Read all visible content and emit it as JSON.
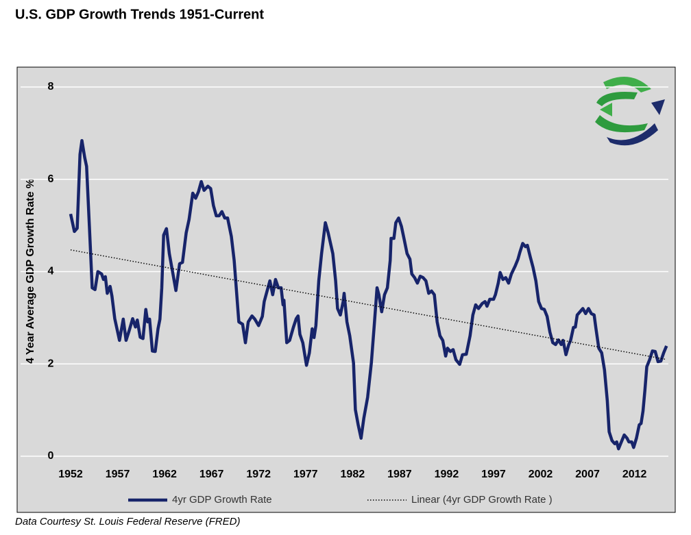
{
  "chart_data": {
    "type": "line",
    "title": "U.S. GDP Growth Trends 1951-Current",
    "ylabel": "4 Year Average GDP Growth Rate %",
    "source": "Data Courtesy St. Louis Federal Reserve (FRED)",
    "xlim": [
      1952,
      2015.6
    ],
    "xticks": [
      1952,
      1957,
      1962,
      1967,
      1972,
      1977,
      1982,
      1987,
      1992,
      1997,
      2002,
      2007,
      2012
    ],
    "ylim": [
      0,
      8
    ],
    "yticks": [
      0,
      2,
      4,
      6,
      8
    ],
    "grid": true,
    "legend": "bottom",
    "series": [
      {
        "name": "4yr GDP Growth Rate",
        "color": "#17246a",
        "style": "solid",
        "x": [
          1952,
          1952.4,
          1952.7,
          1953.0,
          1953.2,
          1953.5,
          1953.7,
          1954.0,
          1954.3,
          1954.6,
          1954.9,
          1955.3,
          1955.5,
          1955.7,
          1955.9,
          1956.2,
          1956.4,
          1956.7,
          1957.2,
          1957.6,
          1957.9,
          1958.2,
          1958.6,
          1958.9,
          1959.1,
          1959.4,
          1959.7,
          1960.0,
          1960.2,
          1960.4,
          1960.7,
          1961.0,
          1961.3,
          1961.5,
          1961.7,
          1961.9,
          1962.2,
          1962.5,
          1962.8,
          1963.2,
          1963.6,
          1963.9,
          1964.3,
          1964.6,
          1965.0,
          1965.3,
          1965.6,
          1965.9,
          1966.2,
          1966.6,
          1966.9,
          1967.2,
          1967.5,
          1967.8,
          1968.1,
          1968.4,
          1968.7,
          1969.1,
          1969.4,
          1969.9,
          1970.3,
          1970.6,
          1970.9,
          1971.3,
          1971.6,
          1972.0,
          1972.4,
          1972.6,
          1972.9,
          1973.2,
          1973.5,
          1973.8,
          1974.1,
          1974.4,
          1974.6,
          1974.7,
          1975.0,
          1975.3,
          1975.7,
          1976.0,
          1976.2,
          1976.4,
          1976.7,
          1977.1,
          1977.4,
          1977.7,
          1977.9,
          1978.1,
          1978.4,
          1978.7,
          1979.1,
          1979.4,
          1979.9,
          1980.2,
          1980.4,
          1980.7,
          1981.0,
          1981.1,
          1981.4,
          1981.7,
          1982.1,
          1982.3,
          1982.6,
          1982.9,
          1983.2,
          1983.6,
          1984.0,
          1984.3,
          1984.6,
          1984.8,
          1985.1,
          1985.4,
          1985.7,
          1986.0,
          1986.1,
          1986.4,
          1986.6,
          1986.9,
          1987.2,
          1987.5,
          1987.8,
          1988.1,
          1988.3,
          1988.6,
          1988.9,
          1989.2,
          1989.5,
          1989.8,
          1990.1,
          1990.4,
          1990.7,
          1991.0,
          1991.3,
          1991.6,
          1991.9,
          1992.1,
          1992.4,
          1992.7,
          1993.0,
          1993.4,
          1993.7,
          1994.1,
          1994.5,
          1994.8,
          1995.1,
          1995.4,
          1995.8,
          1996.1,
          1996.3,
          1996.6,
          1997.0,
          1997.2,
          1997.5,
          1997.7,
          1998.0,
          1998.3,
          1998.6,
          1998.9,
          1999.3,
          1999.6,
          1999.8,
          2000.1,
          2000.4,
          2000.6,
          2000.9,
          2001.2,
          2001.5,
          2001.8,
          2002.1,
          2002.4,
          2002.7,
          2003.0,
          2003.3,
          2003.6,
          2003.9,
          2004.2,
          2004.4,
          2004.7,
          2005.0,
          2005.2,
          2005.5,
          2005.7,
          2005.9,
          2006.2,
          2006.5,
          2006.8,
          2007.1,
          2007.4,
          2007.7,
          2007.9,
          2008.2,
          2008.5,
          2008.8,
          2009.1,
          2009.3,
          2009.6,
          2009.9,
          2010.1,
          2010.3,
          2010.6,
          2010.9,
          2011.2,
          2011.4,
          2011.7,
          2011.9,
          2012.2,
          2012.5,
          2012.7,
          2012.9,
          2013.1,
          2013.3,
          2013.6,
          2013.9,
          2014.2,
          2014.5,
          2014.8,
          2015.1,
          2015.4
        ],
        "values": [
          5.25,
          4.87,
          4.94,
          6.54,
          6.84,
          6.47,
          6.28,
          4.98,
          3.65,
          3.61,
          4.0,
          3.95,
          3.83,
          3.89,
          3.53,
          3.68,
          3.47,
          2.98,
          2.51,
          2.97,
          2.51,
          2.7,
          2.98,
          2.8,
          2.95,
          2.58,
          2.55,
          3.18,
          2.91,
          2.97,
          2.28,
          2.27,
          2.76,
          2.97,
          3.65,
          4.79,
          4.93,
          4.39,
          4.05,
          3.59,
          4.17,
          4.2,
          4.84,
          5.13,
          5.7,
          5.59,
          5.73,
          5.95,
          5.76,
          5.85,
          5.8,
          5.43,
          5.21,
          5.21,
          5.3,
          5.16,
          5.16,
          4.76,
          4.24,
          2.91,
          2.86,
          2.46,
          2.91,
          3.04,
          2.97,
          2.83,
          3.03,
          3.35,
          3.58,
          3.8,
          3.5,
          3.83,
          3.65,
          3.65,
          3.28,
          3.38,
          2.46,
          2.51,
          2.79,
          2.98,
          3.04,
          2.64,
          2.46,
          1.97,
          2.24,
          2.76,
          2.57,
          2.83,
          3.8,
          4.39,
          5.06,
          4.84,
          4.39,
          3.8,
          3.2,
          3.06,
          3.35,
          3.53,
          2.91,
          2.61,
          2.02,
          1.01,
          0.68,
          0.39,
          0.83,
          1.28,
          2.02,
          2.83,
          3.65,
          3.5,
          3.13,
          3.5,
          3.65,
          4.24,
          4.72,
          4.72,
          5.06,
          5.16,
          4.98,
          4.69,
          4.39,
          4.27,
          3.95,
          3.87,
          3.75,
          3.9,
          3.87,
          3.8,
          3.53,
          3.58,
          3.5,
          2.91,
          2.61,
          2.51,
          2.17,
          2.34,
          2.27,
          2.31,
          2.09,
          1.99,
          2.2,
          2.21,
          2.61,
          3.06,
          3.28,
          3.2,
          3.31,
          3.35,
          3.25,
          3.4,
          3.4,
          3.5,
          3.75,
          3.98,
          3.83,
          3.87,
          3.75,
          3.95,
          4.12,
          4.27,
          4.42,
          4.61,
          4.54,
          4.57,
          4.32,
          4.09,
          3.8,
          3.35,
          3.2,
          3.18,
          3.03,
          2.69,
          2.46,
          2.42,
          2.52,
          2.42,
          2.51,
          2.2,
          2.42,
          2.51,
          2.79,
          2.8,
          3.06,
          3.13,
          3.2,
          3.09,
          3.2,
          3.09,
          3.06,
          2.76,
          2.34,
          2.24,
          1.87,
          1.2,
          0.53,
          0.34,
          0.27,
          0.31,
          0.16,
          0.31,
          0.46,
          0.39,
          0.31,
          0.31,
          0.19,
          0.39,
          0.68,
          0.71,
          0.98,
          1.42,
          1.94,
          2.09,
          2.28,
          2.27,
          2.05,
          2.06,
          2.24,
          2.39
        ]
      },
      {
        "name": "Linear (4yr GDP Growth Rate )",
        "color": "#000000",
        "style": "dotted",
        "x": [
          1952,
          2015.3
        ],
        "values": [
          4.47,
          2.1
        ]
      }
    ]
  }
}
